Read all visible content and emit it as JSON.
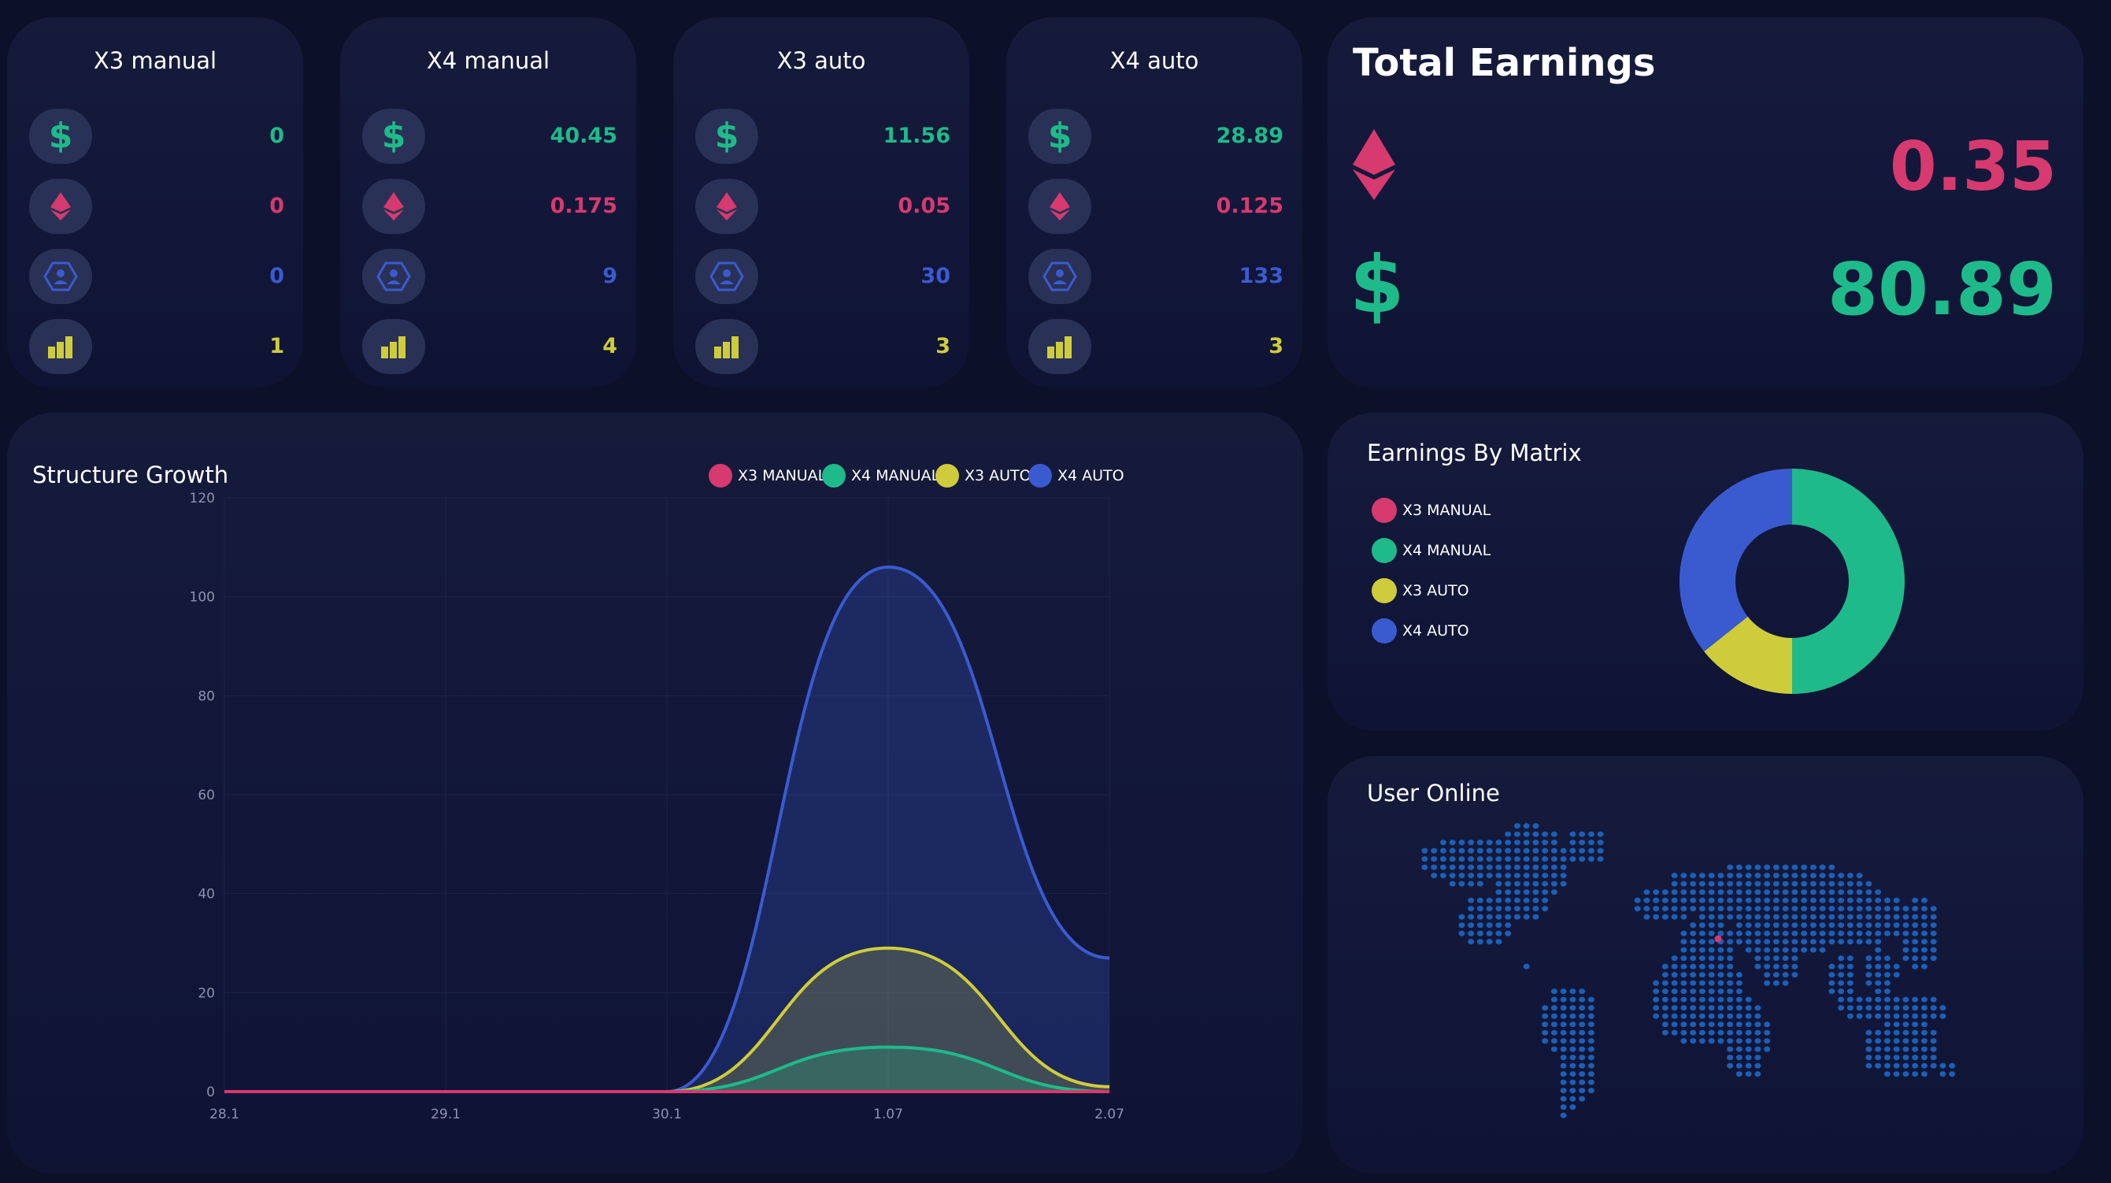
{
  "colors": {
    "x3_manual": "#d63a6f",
    "x4_manual": "#1fba8a",
    "x3_auto": "#cfcc3b",
    "x4_auto": "#3a5bd0",
    "icon_bg": "#2a3156"
  },
  "matrix_cards": [
    {
      "title": "X3 manual",
      "values": {
        "usd": "0",
        "eth": "0",
        "partners": "0",
        "levels": "1"
      }
    },
    {
      "title": "X4 manual",
      "values": {
        "usd": "40.45",
        "eth": "0.175",
        "partners": "9",
        "levels": "4"
      }
    },
    {
      "title": "X3 auto",
      "values": {
        "usd": "11.56",
        "eth": "0.05",
        "partners": "30",
        "levels": "3"
      }
    },
    {
      "title": "X4 auto",
      "values": {
        "usd": "28.89",
        "eth": "0.125",
        "partners": "133",
        "levels": "3"
      }
    }
  ],
  "card_icons": [
    "dollar-icon",
    "ethereum-icon",
    "partners-icon",
    "levels-icon"
  ],
  "total_earnings": {
    "title": "Total Earnings",
    "eth": "0.35",
    "usd": "80.89",
    "dollar_symbol": "$"
  },
  "structure_growth": {
    "title": "Structure Growth",
    "legend": [
      "X3 MANUAL",
      "X4 MANUAL",
      "X3 AUTO",
      "X4 AUTO"
    ]
  },
  "earnings_by_matrix": {
    "title": "Earnings By Matrix",
    "legend": [
      "X3 MANUAL",
      "X4 MANUAL",
      "X3 AUTO",
      "X4 AUTO"
    ]
  },
  "user_online": {
    "title": "User Online",
    "map_icon": "world-map-icon"
  },
  "chart_data": [
    {
      "type": "area",
      "title": "Structure Growth",
      "x": [
        "28.1",
        "29.1",
        "30.1",
        "1.07",
        "2.07"
      ],
      "ylim": [
        0,
        120
      ],
      "yticks": [
        0,
        20,
        40,
        60,
        80,
        100,
        120
      ],
      "legend_position": "top-center",
      "series": [
        {
          "name": "X3 MANUAL",
          "values": [
            0,
            0,
            0,
            0,
            0
          ]
        },
        {
          "name": "X4 MANUAL",
          "values": [
            0,
            0,
            0,
            9,
            0
          ]
        },
        {
          "name": "X3 AUTO",
          "values": [
            0,
            0,
            0,
            29,
            1
          ]
        },
        {
          "name": "X4 AUTO",
          "values": [
            0,
            0,
            0,
            106,
            27
          ]
        }
      ]
    },
    {
      "type": "pie",
      "title": "Earnings By Matrix",
      "legend_position": "left",
      "categories": [
        "X3 MANUAL",
        "X4 MANUAL",
        "X3 AUTO",
        "X4 AUTO"
      ],
      "values": [
        0,
        40.45,
        11.56,
        28.89
      ]
    }
  ]
}
